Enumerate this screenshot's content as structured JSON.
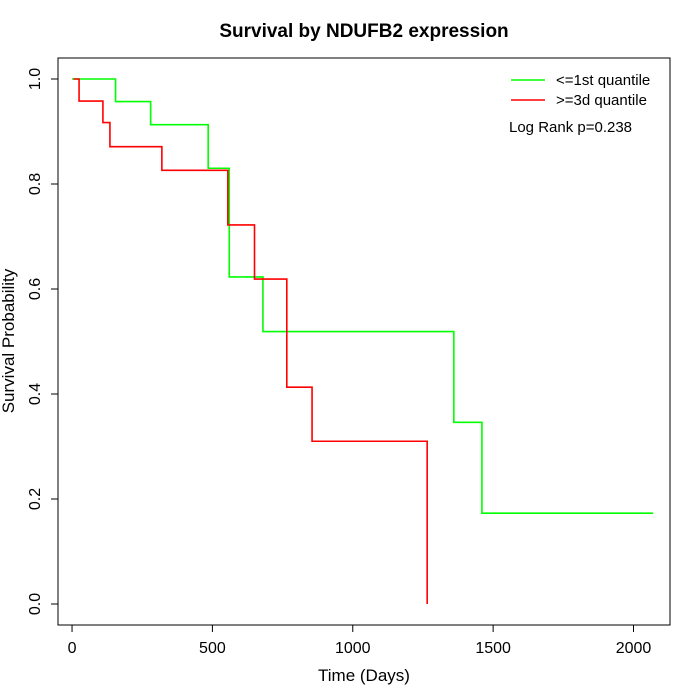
{
  "chart_data": {
    "type": "line",
    "step": true,
    "title": "Survival by NDUFB2 expression",
    "xlabel": "Time (Days)",
    "ylabel": "Survival Probability",
    "xlim": [
      -50,
      2130
    ],
    "ylim": [
      -0.04,
      1.04
    ],
    "xticks": [
      0,
      500,
      1000,
      1500,
      2000
    ],
    "yticks": [
      0.0,
      0.2,
      0.4,
      0.6,
      0.8,
      1.0
    ],
    "xtick_labels": [
      "0",
      "500",
      "1000",
      "1500",
      "2000"
    ],
    "ytick_labels": [
      "0.0",
      "0.2",
      "0.4",
      "0.6",
      "0.8",
      "1.0"
    ],
    "grid": false,
    "legend": "top-right",
    "annotation": "Log Rank p=0.238",
    "series": [
      {
        "name": "<=1st quantile",
        "color": "#00ff00",
        "x": [
          0,
          155,
          155,
          280,
          280,
          485,
          485,
          560,
          560,
          680,
          680,
          1360,
          1360,
          1460,
          1460,
          2070
        ],
        "y": [
          1.0,
          1.0,
          0.957,
          0.957,
          0.913,
          0.913,
          0.83,
          0.83,
          0.623,
          0.623,
          0.519,
          0.519,
          0.346,
          0.346,
          0.173,
          0.173
        ]
      },
      {
        "name": ">=3d quantile",
        "color": "#ff0000",
        "x": [
          5,
          25,
          25,
          110,
          110,
          135,
          135,
          320,
          320,
          555,
          555,
          650,
          650,
          765,
          765,
          855,
          855,
          1265,
          1265
        ],
        "y": [
          1.0,
          1.0,
          0.958,
          0.958,
          0.917,
          0.917,
          0.871,
          0.871,
          0.826,
          0.826,
          0.722,
          0.722,
          0.619,
          0.619,
          0.413,
          0.413,
          0.31,
          0.31,
          0.0
        ]
      }
    ]
  }
}
